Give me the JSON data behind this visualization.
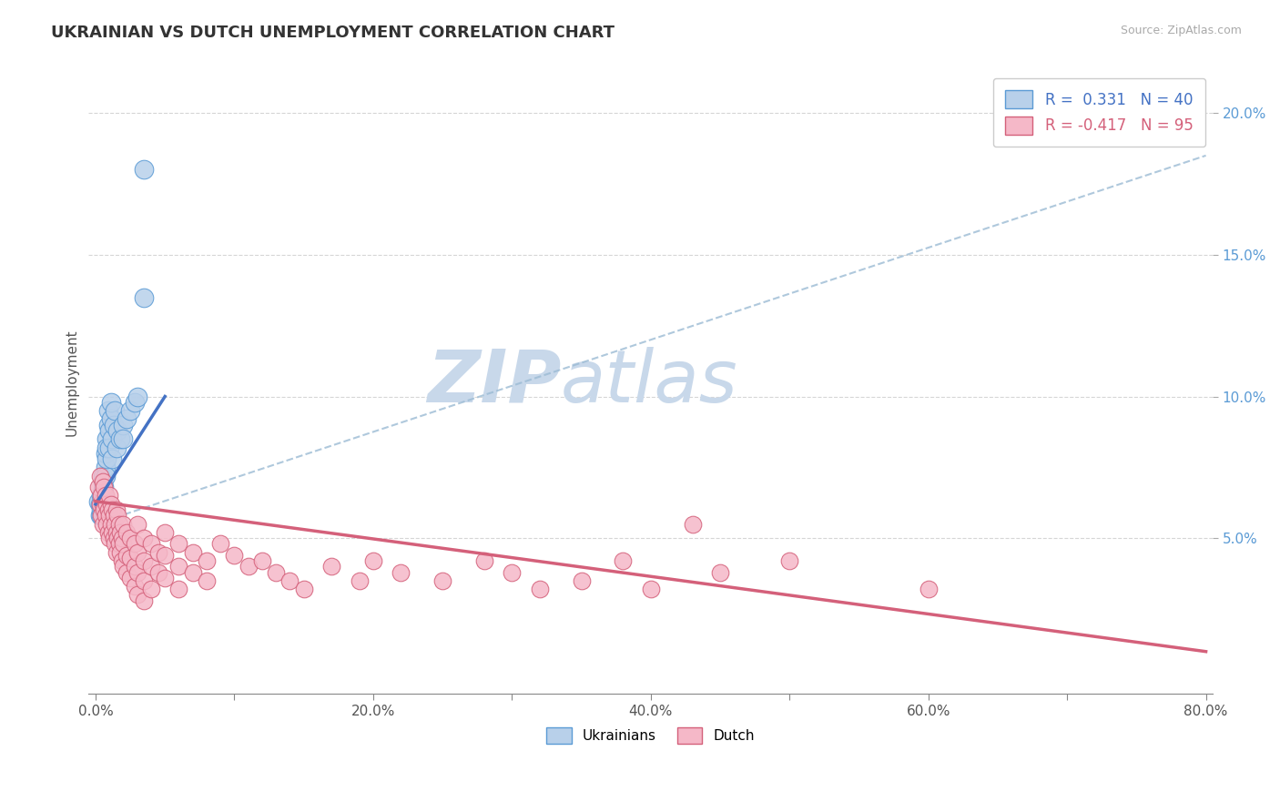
{
  "title": "UKRAINIAN VS DUTCH UNEMPLOYMENT CORRELATION CHART",
  "source": "Source: ZipAtlas.com",
  "ylabel": "Unemployment",
  "xlim": [
    -0.005,
    0.805
  ],
  "ylim": [
    -0.005,
    0.215
  ],
  "xticks": [
    0.0,
    0.1,
    0.2,
    0.3,
    0.4,
    0.5,
    0.6,
    0.7,
    0.8
  ],
  "xticklabels": [
    "0.0%",
    "",
    "20.0%",
    "",
    "40.0%",
    "",
    "60.0%",
    "",
    "80.0%"
  ],
  "yticks": [
    0.05,
    0.1,
    0.15,
    0.2
  ],
  "yticklabels": [
    "5.0%",
    "10.0%",
    "15.0%",
    "20.0%"
  ],
  "ukrainian_color": "#b8d0ea",
  "dutch_color": "#f5b8c8",
  "ukrainian_edge": "#5b9bd5",
  "dutch_edge": "#d4607a",
  "trend_ukrainian_color": "#4472c4",
  "trend_dutch_color": "#d4607a",
  "trend_gray_color": "#9bbbd4",
  "watermark_zip": "ZIP",
  "watermark_atlas": "atlas",
  "watermark_color": "#c8d8ea",
  "legend_line1": "R =  0.331   N = 40",
  "legend_line2": "R = -0.417   N = 95",
  "ukrainian_points": [
    [
      0.002,
      0.063
    ],
    [
      0.003,
      0.058
    ],
    [
      0.003,
      0.062
    ],
    [
      0.004,
      0.06
    ],
    [
      0.004,
      0.065
    ],
    [
      0.004,
      0.058
    ],
    [
      0.005,
      0.067
    ],
    [
      0.005,
      0.063
    ],
    [
      0.005,
      0.07
    ],
    [
      0.005,
      0.072
    ],
    [
      0.006,
      0.068
    ],
    [
      0.006,
      0.06
    ],
    [
      0.007,
      0.075
    ],
    [
      0.007,
      0.08
    ],
    [
      0.007,
      0.072
    ],
    [
      0.008,
      0.085
    ],
    [
      0.008,
      0.078
    ],
    [
      0.008,
      0.082
    ],
    [
      0.009,
      0.09
    ],
    [
      0.009,
      0.095
    ],
    [
      0.01,
      0.088
    ],
    [
      0.01,
      0.082
    ],
    [
      0.011,
      0.092
    ],
    [
      0.011,
      0.098
    ],
    [
      0.012,
      0.085
    ],
    [
      0.012,
      0.078
    ],
    [
      0.013,
      0.09
    ],
    [
      0.014,
      0.095
    ],
    [
      0.015,
      0.082
    ],
    [
      0.016,
      0.088
    ],
    [
      0.018,
      0.085
    ],
    [
      0.02,
      0.09
    ],
    [
      0.022,
      0.092
    ],
    [
      0.025,
      0.095
    ],
    [
      0.028,
      0.098
    ],
    [
      0.03,
      0.1
    ],
    [
      0.035,
      0.18
    ],
    [
      0.035,
      0.135
    ],
    [
      0.02,
      0.085
    ],
    [
      0.008,
      0.063
    ]
  ],
  "dutch_points": [
    [
      0.002,
      0.068
    ],
    [
      0.003,
      0.062
    ],
    [
      0.003,
      0.072
    ],
    [
      0.004,
      0.065
    ],
    [
      0.004,
      0.058
    ],
    [
      0.005,
      0.07
    ],
    [
      0.005,
      0.062
    ],
    [
      0.005,
      0.055
    ],
    [
      0.006,
      0.068
    ],
    [
      0.006,
      0.06
    ],
    [
      0.007,
      0.065
    ],
    [
      0.007,
      0.058
    ],
    [
      0.008,
      0.062
    ],
    [
      0.008,
      0.055
    ],
    [
      0.009,
      0.06
    ],
    [
      0.009,
      0.052
    ],
    [
      0.01,
      0.065
    ],
    [
      0.01,
      0.058
    ],
    [
      0.01,
      0.05
    ],
    [
      0.011,
      0.062
    ],
    [
      0.011,
      0.055
    ],
    [
      0.012,
      0.06
    ],
    [
      0.012,
      0.052
    ],
    [
      0.013,
      0.058
    ],
    [
      0.013,
      0.05
    ],
    [
      0.014,
      0.055
    ],
    [
      0.014,
      0.048
    ],
    [
      0.015,
      0.06
    ],
    [
      0.015,
      0.052
    ],
    [
      0.015,
      0.045
    ],
    [
      0.016,
      0.058
    ],
    [
      0.016,
      0.05
    ],
    [
      0.017,
      0.055
    ],
    [
      0.017,
      0.048
    ],
    [
      0.018,
      0.052
    ],
    [
      0.018,
      0.045
    ],
    [
      0.019,
      0.05
    ],
    [
      0.019,
      0.042
    ],
    [
      0.02,
      0.055
    ],
    [
      0.02,
      0.048
    ],
    [
      0.02,
      0.04
    ],
    [
      0.022,
      0.052
    ],
    [
      0.022,
      0.044
    ],
    [
      0.022,
      0.038
    ],
    [
      0.025,
      0.05
    ],
    [
      0.025,
      0.043
    ],
    [
      0.025,
      0.036
    ],
    [
      0.028,
      0.048
    ],
    [
      0.028,
      0.04
    ],
    [
      0.028,
      0.033
    ],
    [
      0.03,
      0.055
    ],
    [
      0.03,
      0.045
    ],
    [
      0.03,
      0.038
    ],
    [
      0.03,
      0.03
    ],
    [
      0.035,
      0.05
    ],
    [
      0.035,
      0.042
    ],
    [
      0.035,
      0.035
    ],
    [
      0.035,
      0.028
    ],
    [
      0.04,
      0.048
    ],
    [
      0.04,
      0.04
    ],
    [
      0.04,
      0.032
    ],
    [
      0.045,
      0.045
    ],
    [
      0.045,
      0.038
    ],
    [
      0.05,
      0.052
    ],
    [
      0.05,
      0.044
    ],
    [
      0.05,
      0.036
    ],
    [
      0.06,
      0.048
    ],
    [
      0.06,
      0.04
    ],
    [
      0.06,
      0.032
    ],
    [
      0.07,
      0.045
    ],
    [
      0.07,
      0.038
    ],
    [
      0.08,
      0.042
    ],
    [
      0.08,
      0.035
    ],
    [
      0.09,
      0.048
    ],
    [
      0.1,
      0.044
    ],
    [
      0.11,
      0.04
    ],
    [
      0.12,
      0.042
    ],
    [
      0.13,
      0.038
    ],
    [
      0.14,
      0.035
    ],
    [
      0.15,
      0.032
    ],
    [
      0.17,
      0.04
    ],
    [
      0.19,
      0.035
    ],
    [
      0.2,
      0.042
    ],
    [
      0.22,
      0.038
    ],
    [
      0.25,
      0.035
    ],
    [
      0.28,
      0.042
    ],
    [
      0.3,
      0.038
    ],
    [
      0.32,
      0.032
    ],
    [
      0.35,
      0.035
    ],
    [
      0.38,
      0.042
    ],
    [
      0.4,
      0.032
    ],
    [
      0.43,
      0.055
    ],
    [
      0.45,
      0.038
    ],
    [
      0.5,
      0.042
    ],
    [
      0.6,
      0.032
    ]
  ],
  "gray_line_x0": 0.0,
  "gray_line_y0": 0.055,
  "gray_line_x1": 0.8,
  "gray_line_y1": 0.185
}
